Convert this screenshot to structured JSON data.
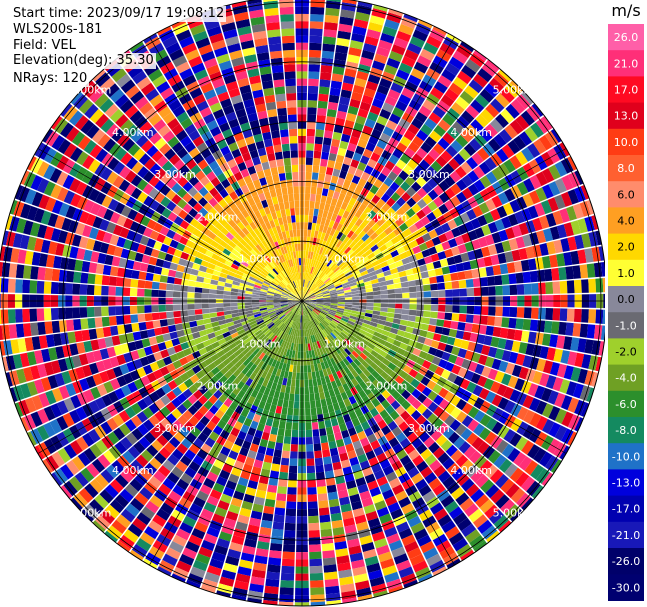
{
  "header": {
    "start_time": "Start time: 2023/09/17 19:08:12",
    "site": "WLS200s-181",
    "field": "Field: VEL",
    "elevation": "Elevation(deg): 35.30",
    "nrays": "NRays: 120"
  },
  "colorbar": {
    "unit": "m/s",
    "ticks": [
      "26.0",
      "21.0",
      "17.0",
      "13.0",
      "10.0",
      "8.0",
      "6.0",
      "4.0",
      "2.0",
      "1.0",
      "0.0",
      "-1.0",
      "-2.0",
      "-4.0",
      "-6.0",
      "-8.0",
      "-10.0",
      "-13.0",
      "-17.0",
      "-21.0",
      "-26.0",
      "-30.0"
    ],
    "colors": [
      "#ff5fa8",
      "#ff2f78",
      "#ff0a22",
      "#e0001c",
      "#ff3c14",
      "#ff6030",
      "#ff8c6c",
      "#ff9f22",
      "#ffd800",
      "#ffff33",
      "#88889a",
      "#6a6a72",
      "#9fd02c",
      "#6fa024",
      "#2c8f2c",
      "#148a60",
      "#1f72c8",
      "#0000dd",
      "#0000b0",
      "#1818b8",
      "#00006a",
      "#000070"
    ]
  },
  "chart_data": {
    "type": "heatmap",
    "title": "",
    "projection": "polar PPI",
    "field": "VEL",
    "unit": "m/s",
    "n_rays": 120,
    "elevation_deg": 35.3,
    "range_ring_labels": [
      "1.00km",
      "2.00km",
      "3.00km",
      "4.00km",
      "5.00km"
    ],
    "range_ring_km": [
      1,
      2,
      3,
      4,
      5
    ],
    "max_range_km": 5.1,
    "gate_length_km": 0.05,
    "vmin": -30.0,
    "vmax": 26.0,
    "color_levels": [
      26.0,
      21.0,
      17.0,
      13.0,
      10.0,
      8.0,
      6.0,
      4.0,
      2.0,
      1.0,
      0.0,
      -1.0,
      -2.0,
      -4.0,
      -6.0,
      -8.0,
      -10.0,
      -13.0,
      -17.0,
      -21.0,
      -26.0,
      -30.0
    ],
    "regions": [
      {
        "where": "inner, north half",
        "max_range_km": 2.2,
        "velocity_ms": [
          2.0,
          8.0
        ],
        "note": "yellow/orange toward north"
      },
      {
        "where": "inner, south half",
        "max_range_km": 2.2,
        "velocity_ms": [
          -8.0,
          -2.0
        ],
        "note": "green/blue toward south"
      },
      {
        "where": "inner, east/west",
        "max_range_km": 2.2,
        "velocity_ms": [
          -1.0,
          1.0
        ],
        "note": "gray near zero"
      },
      {
        "where": "outer",
        "min_range_km": 2.2,
        "velocity_ms": [
          -30.0,
          26.0
        ],
        "note": "noisy full-range speckle"
      }
    ]
  }
}
